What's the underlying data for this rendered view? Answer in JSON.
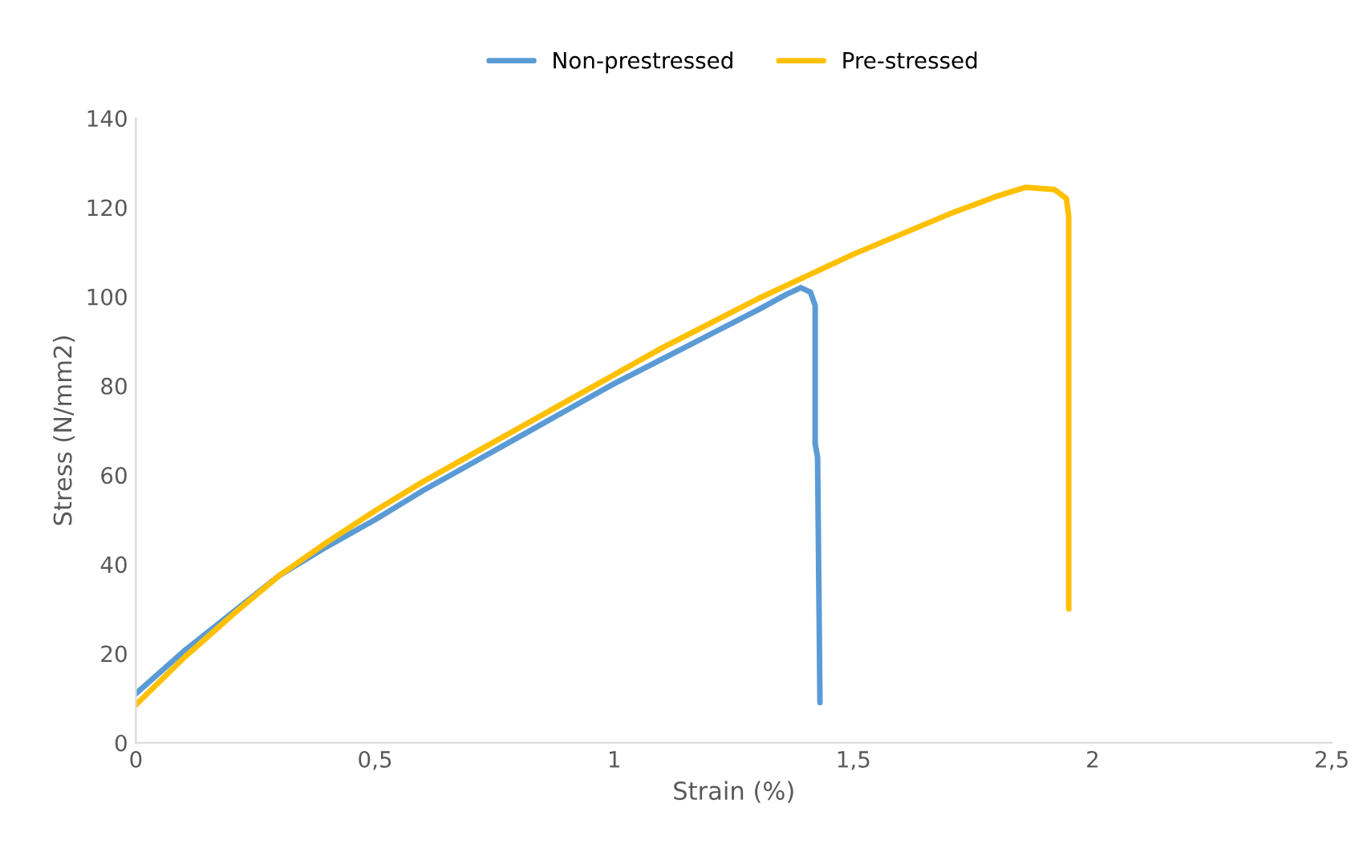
{
  "chart_data": {
    "type": "line",
    "xlabel": "Strain (%)",
    "ylabel": "Stress (N/mm2)",
    "xlim": [
      0,
      2.5
    ],
    "xticks": [
      {
        "value": 0,
        "label": "0"
      },
      {
        "value": 0.5,
        "label": "0,5"
      },
      {
        "value": 1,
        "label": "1"
      },
      {
        "value": 1.5,
        "label": "1,5"
      },
      {
        "value": 2,
        "label": "2"
      },
      {
        "value": 2.5,
        "label": "2,5"
      }
    ],
    "ylim": [
      0,
      140
    ],
    "yticks": [
      0,
      20,
      40,
      60,
      80,
      100,
      120,
      140
    ],
    "grid": false,
    "legend": "top",
    "marker": "none",
    "line_style": "solid",
    "series": [
      {
        "name": "Non-prestressed",
        "color": "#5b9bd5",
        "x": [
          0,
          0.1,
          0.2,
          0.3,
          0.4,
          0.5,
          0.6,
          0.7,
          0.8,
          0.9,
          1.0,
          1.1,
          1.2,
          1.3,
          1.36,
          1.39,
          1.41,
          1.42,
          1.42,
          1.425,
          1.43
        ],
        "values": [
          11,
          20.5,
          29,
          37.5,
          44,
          50,
          56.5,
          62.5,
          68.5,
          74.5,
          80.5,
          86,
          91.5,
          97,
          100.5,
          102,
          101,
          98,
          67,
          64,
          9
        ]
      },
      {
        "name": "Pre-stressed",
        "color": "#ffc000",
        "x": [
          0,
          0.1,
          0.2,
          0.3,
          0.4,
          0.5,
          0.6,
          0.7,
          0.8,
          0.9,
          1.0,
          1.1,
          1.2,
          1.3,
          1.4,
          1.5,
          1.6,
          1.7,
          1.8,
          1.86,
          1.92,
          1.945,
          1.95,
          1.95
        ],
        "values": [
          8.5,
          19,
          28.5,
          37.5,
          45,
          52,
          58.5,
          64.5,
          70.5,
          76.5,
          82.5,
          88.5,
          94,
          99.5,
          104.5,
          109.5,
          114,
          118.5,
          122.5,
          124.5,
          124,
          122,
          118,
          30
        ]
      }
    ]
  }
}
